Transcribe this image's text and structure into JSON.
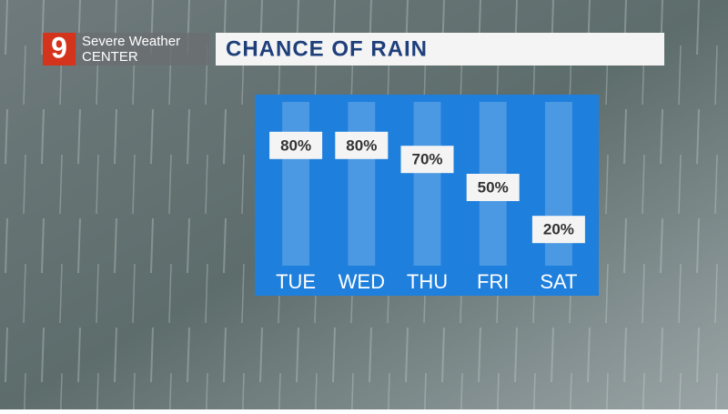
{
  "header": {
    "logo": "9",
    "line1": "Severe Weather",
    "line2": "CENTER"
  },
  "chart_data": {
    "type": "bar",
    "title": "CHANCE OF RAIN",
    "categories": [
      "TUE",
      "WED",
      "THU",
      "FRI",
      "SAT"
    ],
    "values": [
      80,
      80,
      70,
      50,
      20
    ],
    "value_labels": [
      "80%",
      "80%",
      "70%",
      "50%",
      "20%"
    ],
    "ylim": [
      0,
      100
    ],
    "color": "#1e7fdc"
  }
}
